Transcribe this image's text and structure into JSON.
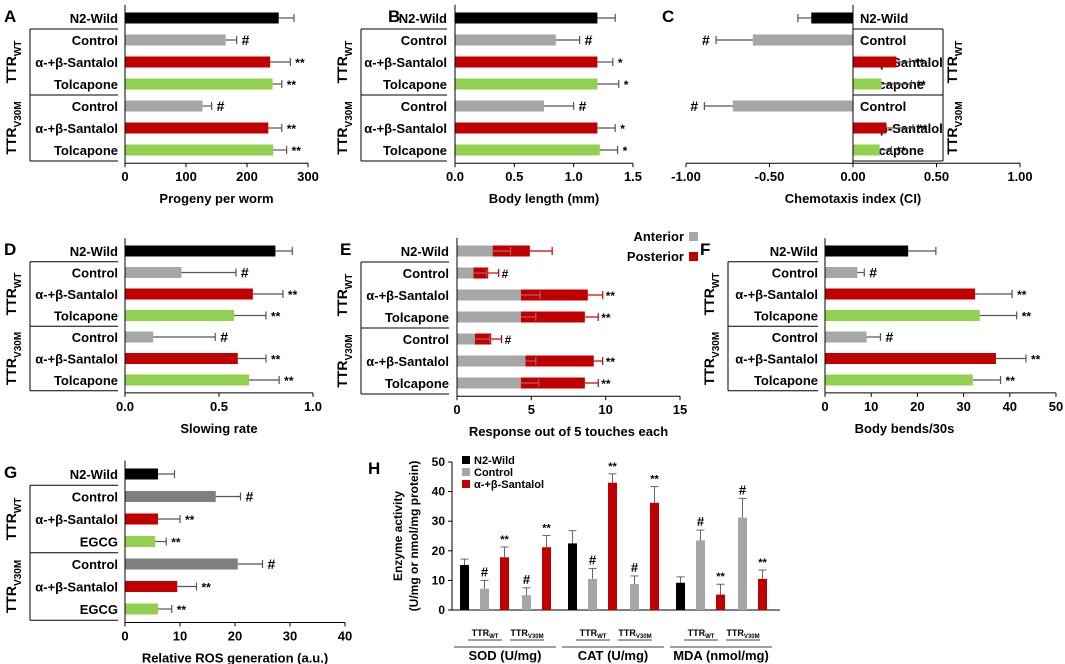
{
  "colors": {
    "n2_wild": "#000000",
    "control": "#a6a6a6",
    "control_dark": "#7f7f7f",
    "santalol": "#c00000",
    "tolcapone": "#92d050",
    "egcg": "#92d050",
    "anterior": "#a6a6a6",
    "posterior": "#c00000"
  },
  "group_labels": {
    "wt": "TTR",
    "wt_sub": "WT",
    "v30m": "TTR",
    "v30m_sub": "V30M"
  },
  "chart_data": [
    {
      "panel": "A",
      "type": "bar",
      "orientation": "horizontal",
      "xlabel": "Progeny per worm",
      "xlim": [
        0,
        300
      ],
      "ticks": [
        0,
        100,
        200,
        300
      ],
      "bars": [
        {
          "label": "N2-Wild",
          "value": 252,
          "err": 25,
          "color": "n2_wild",
          "sig": ""
        },
        {
          "label": "Control",
          "value": 165,
          "err": 18,
          "color": "control",
          "sig": "#"
        },
        {
          "label": "α-+β-Santalol",
          "value": 238,
          "err": 33,
          "color": "santalol",
          "sig": "**"
        },
        {
          "label": "Tolcapone",
          "value": 242,
          "err": 15,
          "color": "tolcapone",
          "sig": "**"
        },
        {
          "label": "Control",
          "value": 127,
          "err": 15,
          "color": "control",
          "sig": "#"
        },
        {
          "label": "α-+β-Santalol",
          "value": 235,
          "err": 22,
          "color": "santalol",
          "sig": "**"
        },
        {
          "label": "Tolcapone",
          "value": 243,
          "err": 22,
          "color": "tolcapone",
          "sig": "**"
        }
      ]
    },
    {
      "panel": "B",
      "type": "bar",
      "orientation": "horizontal",
      "xlabel": "Body length (mm)",
      "xlim": [
        0,
        1.5
      ],
      "ticks": [
        "0.0",
        "0.5",
        "1.0",
        "1.5"
      ],
      "bars": [
        {
          "label": "N2-Wild",
          "value": 1.2,
          "err": 0.15,
          "color": "n2_wild",
          "sig": ""
        },
        {
          "label": "Control",
          "value": 0.85,
          "err": 0.2,
          "color": "control",
          "sig": "#"
        },
        {
          "label": "α-+β-Santalol",
          "value": 1.2,
          "err": 0.13,
          "color": "santalol",
          "sig": "*"
        },
        {
          "label": "Tolcapone",
          "value": 1.2,
          "err": 0.18,
          "color": "tolcapone",
          "sig": "*"
        },
        {
          "label": "Control",
          "value": 0.75,
          "err": 0.25,
          "color": "control",
          "sig": "#"
        },
        {
          "label": "α-+β-Santalol",
          "value": 1.2,
          "err": 0.15,
          "color": "santalol",
          "sig": "*"
        },
        {
          "label": "Tolcapone",
          "value": 1.22,
          "err": 0.15,
          "color": "tolcapone",
          "sig": "*"
        }
      ]
    },
    {
      "panel": "C",
      "type": "bar",
      "orientation": "horizontal",
      "xlabel": "Chemotaxis index (CI)",
      "xlim": [
        -1.0,
        1.0
      ],
      "ticks": [
        "-1.00",
        "-0.50",
        "0.00",
        "0.50",
        "1.00"
      ],
      "bars": [
        {
          "label": "N2-Wild",
          "value": -0.25,
          "err": 0.08,
          "color": "n2_wild",
          "sig": ""
        },
        {
          "label": "Control",
          "value": -0.6,
          "err": 0.22,
          "color": "control",
          "sig": "#"
        },
        {
          "label": "α-+β-Santalol",
          "value": 0.26,
          "err": 0.08,
          "color": "santalol",
          "sig": "**"
        },
        {
          "label": "Tolcapone",
          "value": 0.17,
          "err": 0.18,
          "color": "tolcapone",
          "sig": "**"
        },
        {
          "label": "Control",
          "value": -0.72,
          "err": 0.17,
          "color": "control",
          "sig": "#"
        },
        {
          "label": "α-+β-Santalol",
          "value": 0.2,
          "err": 0.16,
          "color": "santalol",
          "sig": "**"
        },
        {
          "label": "Tolcapone",
          "value": 0.16,
          "err": 0.07,
          "color": "tolcapone",
          "sig": "**"
        }
      ]
    },
    {
      "panel": "D",
      "type": "bar",
      "orientation": "horizontal",
      "xlabel": "Slowing rate",
      "xlim": [
        0,
        1.0
      ],
      "ticks": [
        "0.0",
        "0.5",
        "1.0"
      ],
      "bars": [
        {
          "label": "N2-Wild",
          "value": 0.8,
          "err": 0.09,
          "color": "n2_wild",
          "sig": ""
        },
        {
          "label": "Control",
          "value": 0.3,
          "err": 0.29,
          "color": "control",
          "sig": "#"
        },
        {
          "label": "α-+β-Santalol",
          "value": 0.68,
          "err": 0.16,
          "color": "santalol",
          "sig": "**"
        },
        {
          "label": "Tolcapone",
          "value": 0.58,
          "err": 0.17,
          "color": "tolcapone",
          "sig": "**"
        },
        {
          "label": "Control",
          "value": 0.15,
          "err": 0.33,
          "color": "control",
          "sig": "#"
        },
        {
          "label": "α-+β-Santalol",
          "value": 0.6,
          "err": 0.15,
          "color": "santalol",
          "sig": "**"
        },
        {
          "label": "Tolcapone",
          "value": 0.66,
          "err": 0.16,
          "color": "tolcapone",
          "sig": "**"
        }
      ]
    },
    {
      "panel": "E",
      "type": "bar",
      "orientation": "horizontal",
      "stacked": true,
      "xlabel": "Response out of 5 touches each",
      "xlim": [
        0,
        15
      ],
      "ticks": [
        0,
        5,
        10,
        15
      ],
      "legend": [
        {
          "name": "Anterior",
          "color": "anterior"
        },
        {
          "name": "Posterior",
          "color": "posterior"
        }
      ],
      "bars": [
        {
          "label": "N2-Wild",
          "anterior": 2.4,
          "anterior_err": 1.2,
          "posterior": 2.5,
          "posterior_err": 1.5,
          "sig": ""
        },
        {
          "label": "Control",
          "anterior": 1.1,
          "anterior_err": 0.9,
          "posterior": 1.0,
          "posterior_err": 0.7,
          "sig": "#"
        },
        {
          "label": "α-+β-Santalol",
          "anterior": 4.3,
          "anterior_err": 1.3,
          "posterior": 4.5,
          "posterior_err": 1.0,
          "sig": "**"
        },
        {
          "label": "Tolcapone",
          "anterior": 4.3,
          "anterior_err": 1.0,
          "posterior": 4.3,
          "posterior_err": 0.9,
          "sig": "**"
        },
        {
          "label": "Control",
          "anterior": 1.2,
          "anterior_err": 1.0,
          "posterior": 1.1,
          "posterior_err": 0.7,
          "sig": "#"
        },
        {
          "label": "α-+β-Santalol",
          "anterior": 4.6,
          "anterior_err": 0.7,
          "posterior": 4.6,
          "posterior_err": 0.6,
          "sig": "**"
        },
        {
          "label": "Tolcapone",
          "anterior": 4.3,
          "anterior_err": 1.2,
          "posterior": 4.3,
          "posterior_err": 0.9,
          "sig": "**"
        }
      ]
    },
    {
      "panel": "F",
      "type": "bar",
      "orientation": "horizontal",
      "xlabel": "Body bends/30s",
      "xlim": [
        0,
        50
      ],
      "ticks": [
        0,
        10,
        20,
        30,
        40,
        50
      ],
      "bars": [
        {
          "label": "N2-Wild",
          "value": 18,
          "err": 6,
          "color": "n2_wild",
          "sig": ""
        },
        {
          "label": "Control",
          "value": 7,
          "err": 1.5,
          "color": "control",
          "sig": "#"
        },
        {
          "label": "α-+β-Santalol",
          "value": 32.5,
          "err": 8,
          "color": "santalol",
          "sig": "**"
        },
        {
          "label": "Tolcapone",
          "value": 33.5,
          "err": 8,
          "color": "tolcapone",
          "sig": "**"
        },
        {
          "label": "Control",
          "value": 9,
          "err": 3,
          "color": "control",
          "sig": "#"
        },
        {
          "label": "α-+β-Santalol",
          "value": 37,
          "err": 6.5,
          "color": "santalol",
          "sig": "**"
        },
        {
          "label": "Tolcapone",
          "value": 32,
          "err": 6,
          "color": "tolcapone",
          "sig": "**"
        }
      ]
    },
    {
      "panel": "G",
      "type": "bar",
      "orientation": "horizontal",
      "xlabel": "Relative ROS generation (a.u.)",
      "xlim": [
        0,
        40
      ],
      "ticks": [
        0,
        10,
        20,
        30,
        40
      ],
      "bars": [
        {
          "label": "N2-Wild",
          "value": 6,
          "err": 3,
          "color": "n2_wild",
          "sig": ""
        },
        {
          "label": "Control",
          "value": 16.5,
          "err": 4.5,
          "color": "control_dark",
          "sig": "#"
        },
        {
          "label": "α-+β-Santalol",
          "value": 6,
          "err": 4,
          "color": "santalol",
          "sig": "**"
        },
        {
          "label": "EGCG",
          "value": 5.5,
          "err": 2,
          "color": "egcg",
          "sig": "**"
        },
        {
          "label": "Control",
          "value": 20.5,
          "err": 4.5,
          "color": "control_dark",
          "sig": "#"
        },
        {
          "label": "α-+β-Santalol",
          "value": 9.5,
          "err": 3.5,
          "color": "santalol",
          "sig": "**"
        },
        {
          "label": "EGCG",
          "value": 6,
          "err": 2.5,
          "color": "egcg",
          "sig": "**"
        }
      ]
    },
    {
      "panel": "H",
      "type": "bar",
      "orientation": "vertical",
      "ylabel": "Enzyme activity",
      "ylabel2": "(U/mg or nmol/mg protein)",
      "ylim": [
        0,
        50
      ],
      "ticks": [
        0,
        10,
        20,
        30,
        40,
        50
      ],
      "legend": [
        {
          "name": "N2-Wild",
          "color": "n2_wild"
        },
        {
          "name": "Control",
          "color": "control"
        },
        {
          "name": "α-+β-Santalol",
          "color": "santalol"
        }
      ],
      "groups": [
        {
          "name": "SOD (U/mg)",
          "bars": [
            {
              "value": 15.2,
              "err": 2.0,
              "color": "n2_wild",
              "sig": ""
            },
            {
              "value": 7.2,
              "err": 2.8,
              "color": "control",
              "sig": "#"
            },
            {
              "value": 17.8,
              "err": 3.5,
              "color": "santalol",
              "sig": "**"
            },
            {
              "value": 5.0,
              "err": 2.5,
              "color": "control",
              "sig": "#"
            },
            {
              "value": 21.2,
              "err": 4.0,
              "color": "santalol",
              "sig": "**"
            }
          ]
        },
        {
          "name": "CAT (U/mg)",
          "bars": [
            {
              "value": 22.5,
              "err": 4.3,
              "color": "n2_wild",
              "sig": ""
            },
            {
              "value": 10.5,
              "err": 3.5,
              "color": "control",
              "sig": "#"
            },
            {
              "value": 43.0,
              "err": 3.0,
              "color": "santalol",
              "sig": "**"
            },
            {
              "value": 8.8,
              "err": 2.7,
              "color": "control",
              "sig": "#"
            },
            {
              "value": 36.2,
              "err": 5.5,
              "color": "santalol",
              "sig": "**"
            }
          ]
        },
        {
          "name": "MDA (nmol/mg)",
          "bars": [
            {
              "value": 9.2,
              "err": 2.0,
              "color": "n2_wild",
              "sig": ""
            },
            {
              "value": 23.5,
              "err": 3.5,
              "color": "control",
              "sig": "#"
            },
            {
              "value": 5.2,
              "err": 3.5,
              "color": "santalol",
              "sig": "**"
            },
            {
              "value": 31.2,
              "err": 6.5,
              "color": "control",
              "sig": "#"
            },
            {
              "value": 10.5,
              "err": 3.0,
              "color": "santalol",
              "sig": "**"
            }
          ]
        }
      ],
      "sub_labels": {
        "base": "TTR",
        "wt": "WT",
        "v30m": "V30M"
      }
    }
  ]
}
